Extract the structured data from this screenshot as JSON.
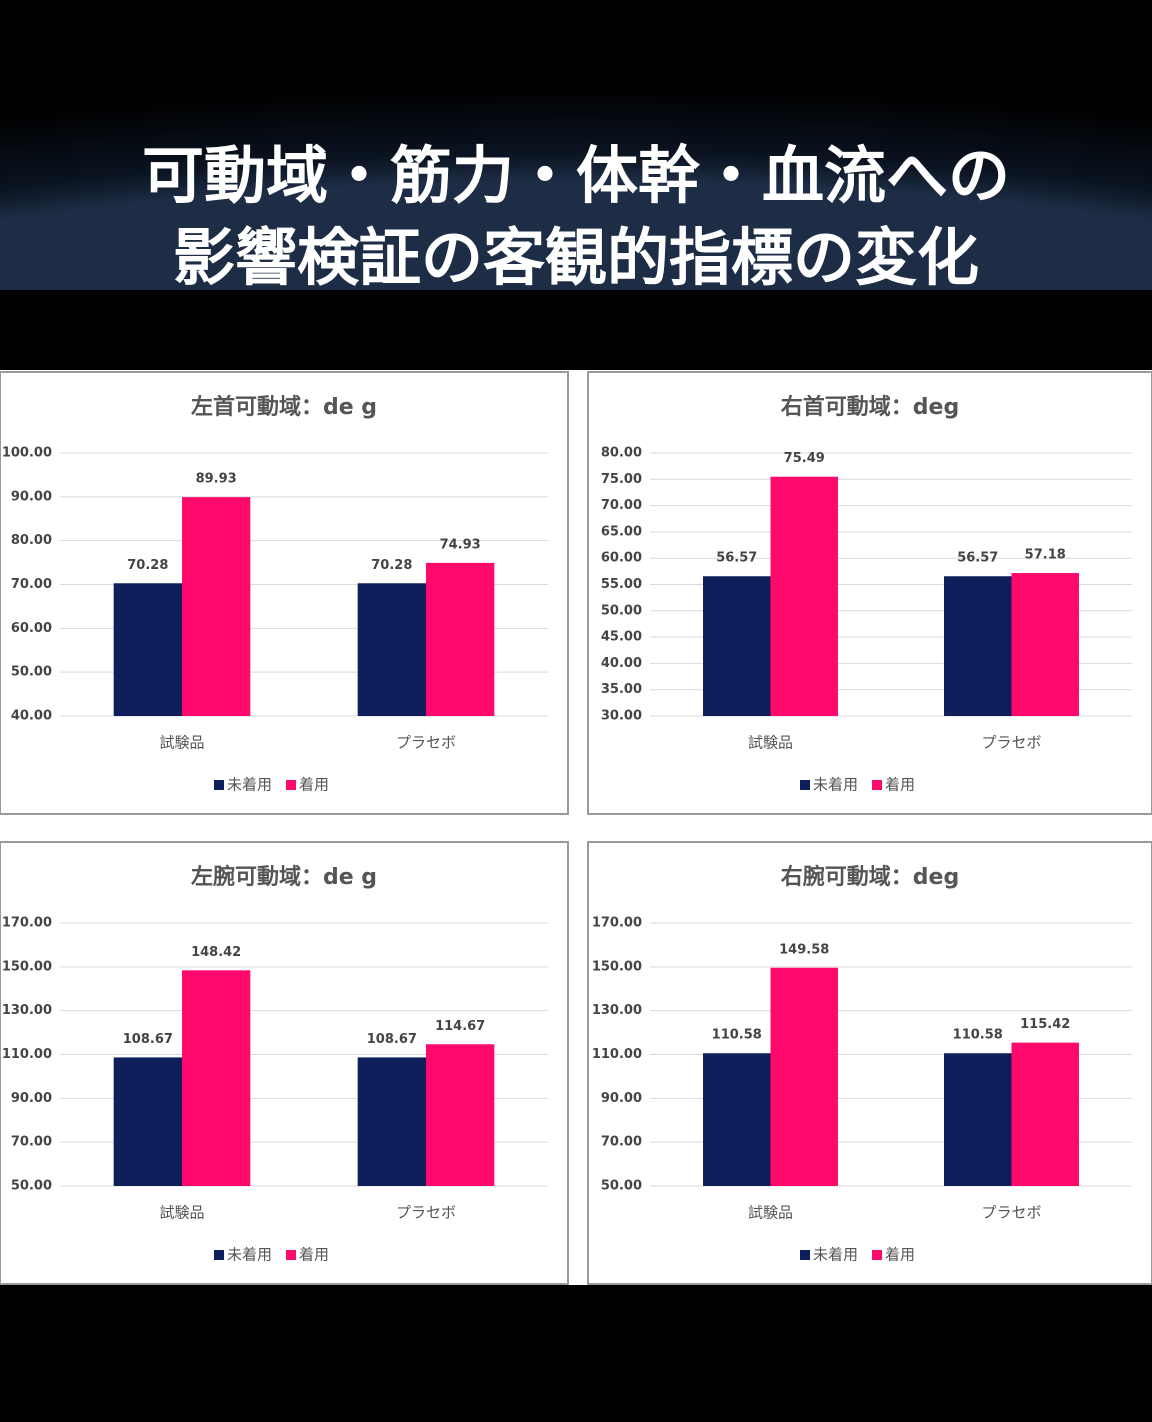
{
  "title": [
    "可動域・筋力・体幹・血流への",
    "影響検証の客観的指標の変化"
  ],
  "chart_data": [
    {
      "type": "bar",
      "title": "左首可動域：de g",
      "categories": [
        "試験品",
        "プラセボ"
      ],
      "series": [
        {
          "name": "未着用",
          "color": "#0e1f5b",
          "values": [
            70.28,
            70.28
          ]
        },
        {
          "name": "着用",
          "color": "#ff0a6c",
          "values": [
            89.93,
            74.93
          ]
        }
      ],
      "ylim": [
        40,
        100
      ],
      "yticks": [
        {
          "value": 40,
          "label": "40.00"
        },
        {
          "value": 50,
          "label": "50.00"
        },
        {
          "value": 60,
          "label": "60.00"
        },
        {
          "value": 70,
          "label": "70.00"
        },
        {
          "value": 80,
          "label": "80.00"
        },
        {
          "value": 90,
          "label": "90.00"
        },
        {
          "value": 100,
          "label": "100.00"
        }
      ],
      "grid": true,
      "legend": "bottom"
    },
    {
      "type": "bar",
      "title": "右首可動域：deg",
      "categories": [
        "試験品",
        "プラセボ"
      ],
      "series": [
        {
          "name": "未着用",
          "color": "#0e1f5b",
          "values": [
            56.57,
            56.57
          ]
        },
        {
          "name": "着用",
          "color": "#ff0a6c",
          "values": [
            75.49,
            57.18
          ]
        }
      ],
      "ylim": [
        30,
        80
      ],
      "yticks": [
        {
          "value": 30,
          "label": "30.00"
        },
        {
          "value": 35,
          "label": "35.00"
        },
        {
          "value": 40,
          "label": "40.00"
        },
        {
          "value": 45,
          "label": "45.00"
        },
        {
          "value": 50,
          "label": "50.00"
        },
        {
          "value": 55,
          "label": "55.00"
        },
        {
          "value": 60,
          "label": "60.00"
        },
        {
          "value": 65,
          "label": "65.00"
        },
        {
          "value": 70,
          "label": "70.00"
        },
        {
          "value": 75,
          "label": "75.00"
        },
        {
          "value": 80,
          "label": "80.00"
        }
      ],
      "grid": true,
      "legend": "bottom"
    },
    {
      "type": "bar",
      "title": "左腕可動域：de g",
      "categories": [
        "試験品",
        "プラセボ"
      ],
      "series": [
        {
          "name": "未着用",
          "color": "#0e1f5b",
          "values": [
            108.67,
            108.67
          ]
        },
        {
          "name": "着用",
          "color": "#ff0a6c",
          "values": [
            148.42,
            114.67
          ]
        }
      ],
      "ylim": [
        50,
        170
      ],
      "yticks": [
        {
          "value": 50,
          "label": "50.00"
        },
        {
          "value": 70,
          "label": "70.00"
        },
        {
          "value": 90,
          "label": "90.00"
        },
        {
          "value": 110,
          "label": "110.00"
        },
        {
          "value": 130,
          "label": "130.00"
        },
        {
          "value": 150,
          "label": "150.00"
        },
        {
          "value": 170,
          "label": "170.00"
        }
      ],
      "grid": true,
      "legend": "bottom"
    },
    {
      "type": "bar",
      "title": "右腕可動域：deg",
      "categories": [
        "試験品",
        "プラセボ"
      ],
      "series": [
        {
          "name": "未着用",
          "color": "#0e1f5b",
          "values": [
            110.58,
            110.58
          ]
        },
        {
          "name": "着用",
          "color": "#ff0a6c",
          "values": [
            149.58,
            115.42
          ]
        }
      ],
      "ylim": [
        50,
        170
      ],
      "yticks": [
        {
          "value": 50,
          "label": "50.00"
        },
        {
          "value": 70,
          "label": "70.00"
        },
        {
          "value": 90,
          "label": "90.00"
        },
        {
          "value": 110,
          "label": "110.00"
        },
        {
          "value": 130,
          "label": "130.00"
        },
        {
          "value": 150,
          "label": "150.00"
        },
        {
          "value": 170,
          "label": "170.00"
        }
      ],
      "grid": true,
      "legend": "bottom"
    }
  ]
}
